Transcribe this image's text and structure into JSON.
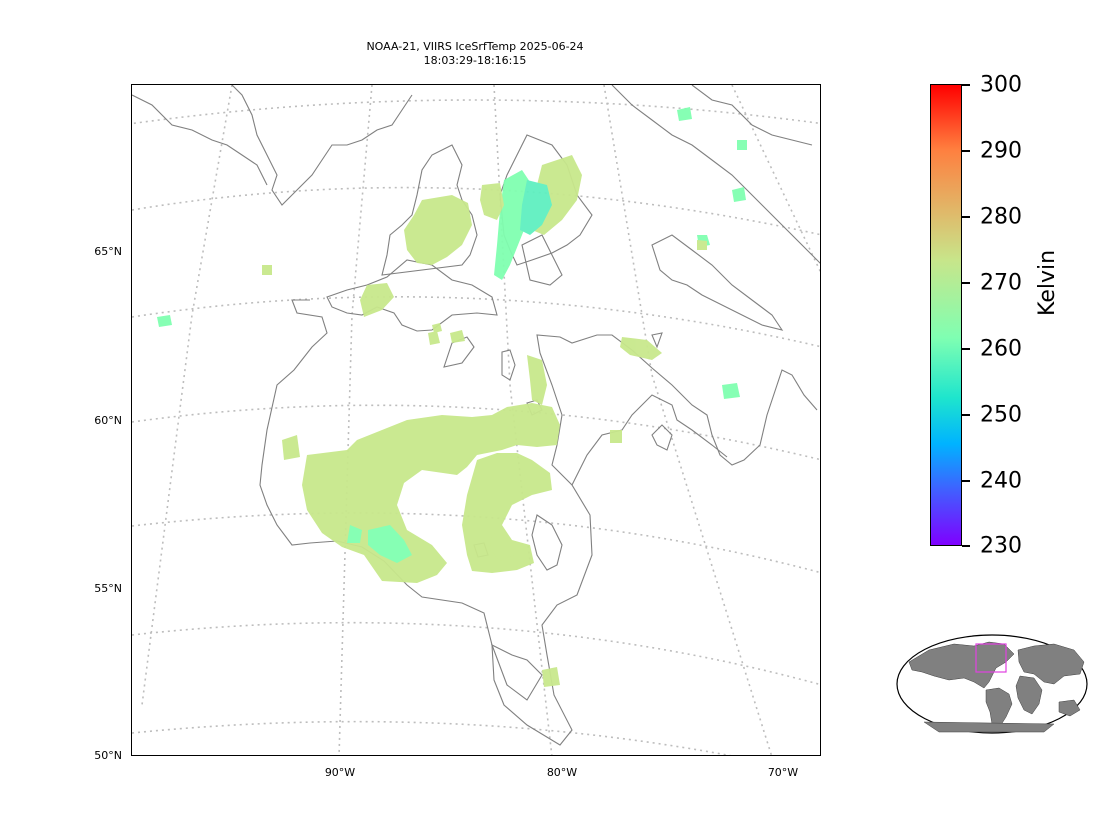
{
  "title": {
    "line1": "NOAA-21, VIIRS IceSrfTemp 2025-06-24",
    "line2": "18:03:29-18:16:15"
  },
  "map": {
    "lat_labels": [
      "65°N",
      "60°N",
      "55°N",
      "50°N"
    ],
    "lon_labels": [
      "90°W",
      "80°W",
      "70°W"
    ],
    "gridlines": "dotted",
    "coastline_color": "#808080"
  },
  "colorbar": {
    "label": "Kelvin",
    "ticks": [
      "300",
      "290",
      "280",
      "270",
      "260",
      "250",
      "240",
      "230"
    ],
    "min": 230,
    "max": 300,
    "colormap": "rainbow",
    "colors": [
      "#ff0000",
      "#ff7f3f",
      "#c8e58a",
      "#7fffb2",
      "#1ee5cd",
      "#00b3ff",
      "#4060ff",
      "#7f00ff"
    ]
  },
  "inset": {
    "description_icon": "world-locator-icon",
    "highlight_color": "#e040e0",
    "land_color": "#808080"
  },
  "data_color": {
    "dominant": "#c8e88c",
    "cool": "#80ffb0",
    "cooler": "#5ff0c0"
  }
}
